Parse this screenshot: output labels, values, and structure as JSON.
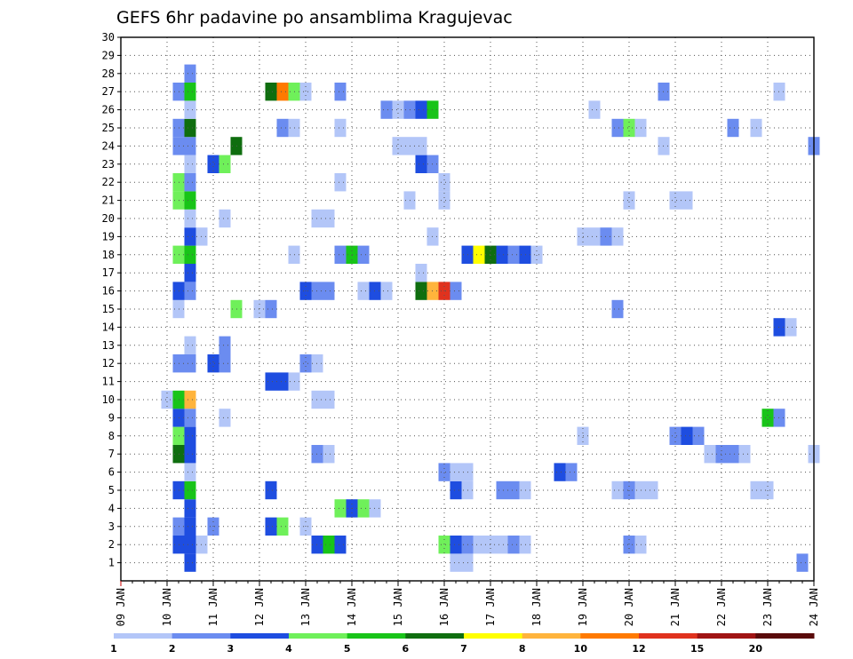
{
  "chart_data": {
    "type": "heatmap",
    "title": "GEFS 6hr padavine po ansamblima Kragujevac",
    "x_tick_labels": [
      "09 JAN",
      "10 JAN",
      "11 JAN",
      "12 JAN",
      "13 JAN",
      "14 JAN",
      "15 JAN",
      "16 JAN",
      "17 JAN",
      "18 JAN",
      "19 JAN",
      "20 JAN",
      "21 JAN",
      "22 JAN",
      "23 JAN",
      "24 JAN"
    ],
    "y_tick_labels": [
      "1",
      "2",
      "3",
      "4",
      "5",
      "6",
      "7",
      "8",
      "9",
      "10",
      "11",
      "12",
      "13",
      "14",
      "15",
      "16",
      "17",
      "18",
      "19",
      "20",
      "21",
      "22",
      "23",
      "24",
      "25",
      "26",
      "27",
      "28",
      "29",
      "30"
    ],
    "xlim_days": [
      9,
      24
    ],
    "ylim": [
      0,
      30
    ],
    "grid": true,
    "color_scale": {
      "colors": [
        "#b3c6f8",
        "#6b8cf0",
        "#1e4de0",
        "#6ff05a",
        "#18c418",
        "#0f6e0f",
        "#ffff00",
        "#ffb43c",
        "#ff7a00",
        "#e0321e",
        "#a01414",
        "#5a0a0a"
      ],
      "bound_labels": [
        "1",
        "2",
        "3",
        "4",
        "5",
        "6",
        "7",
        "8",
        "10",
        "12",
        "15",
        "20"
      ]
    },
    "cells": [
      [
        1,
        10.5,
        3
      ],
      [
        1,
        16.25,
        1
      ],
      [
        1,
        16.5,
        1
      ],
      [
        1,
        23.75,
        2
      ],
      [
        2,
        10.25,
        3
      ],
      [
        2,
        10.5,
        3
      ],
      [
        2,
        10.75,
        1
      ],
      [
        2,
        13.25,
        3
      ],
      [
        2,
        13.5,
        5
      ],
      [
        2,
        13.75,
        3
      ],
      [
        2,
        16.0,
        4
      ],
      [
        2,
        16.25,
        3
      ],
      [
        2,
        16.5,
        2
      ],
      [
        2,
        16.75,
        1
      ],
      [
        2,
        17.0,
        1
      ],
      [
        2,
        17.25,
        1
      ],
      [
        2,
        17.5,
        2
      ],
      [
        2,
        17.75,
        1
      ],
      [
        2,
        20.0,
        2
      ],
      [
        2,
        20.25,
        1
      ],
      [
        3,
        10.25,
        2
      ],
      [
        3,
        10.5,
        3
      ],
      [
        3,
        11.0,
        2
      ],
      [
        3,
        12.25,
        3
      ],
      [
        3,
        12.5,
        4
      ],
      [
        3,
        13.0,
        1
      ],
      [
        4,
        10.5,
        3
      ],
      [
        4,
        13.75,
        4
      ],
      [
        4,
        14.0,
        3
      ],
      [
        4,
        14.25,
        4
      ],
      [
        4,
        14.5,
        1
      ],
      [
        5,
        10.25,
        3
      ],
      [
        5,
        10.5,
        5
      ],
      [
        5,
        12.25,
        3
      ],
      [
        5,
        16.25,
        3
      ],
      [
        5,
        16.5,
        1
      ],
      [
        5,
        17.25,
        2
      ],
      [
        5,
        17.5,
        2
      ],
      [
        5,
        17.75,
        1
      ],
      [
        5,
        19.75,
        1
      ],
      [
        5,
        20.0,
        2
      ],
      [
        5,
        20.25,
        1
      ],
      [
        5,
        20.5,
        1
      ],
      [
        5,
        22.75,
        1
      ],
      [
        5,
        23.0,
        1
      ],
      [
        6,
        10.5,
        1
      ],
      [
        6,
        16.0,
        2
      ],
      [
        6,
        16.25,
        1
      ],
      [
        6,
        16.5,
        1
      ],
      [
        6,
        18.5,
        3
      ],
      [
        6,
        18.75,
        2
      ],
      [
        7,
        10.25,
        6
      ],
      [
        7,
        10.5,
        3
      ],
      [
        7,
        13.25,
        2
      ],
      [
        7,
        13.5,
        1
      ],
      [
        7,
        21.75,
        1
      ],
      [
        7,
        22.0,
        2
      ],
      [
        7,
        22.25,
        2
      ],
      [
        7,
        22.5,
        1
      ],
      [
        7,
        24.0,
        1
      ],
      [
        8,
        10.25,
        4
      ],
      [
        8,
        10.5,
        3
      ],
      [
        8,
        19.0,
        1
      ],
      [
        8,
        21.0,
        2
      ],
      [
        8,
        21.25,
        3
      ],
      [
        8,
        21.5,
        2
      ],
      [
        9,
        10.25,
        3
      ],
      [
        9,
        10.5,
        2
      ],
      [
        9,
        11.25,
        1
      ],
      [
        9,
        23.0,
        5
      ],
      [
        9,
        23.25,
        2
      ],
      [
        10,
        10.0,
        1
      ],
      [
        10,
        10.25,
        5
      ],
      [
        10,
        10.5,
        8
      ],
      [
        10,
        13.25,
        1
      ],
      [
        10,
        13.5,
        1
      ],
      [
        11,
        12.25,
        3
      ],
      [
        11,
        12.5,
        3
      ],
      [
        11,
        12.75,
        1
      ],
      [
        12,
        10.25,
        2
      ],
      [
        12,
        10.5,
        2
      ],
      [
        12,
        11.0,
        3
      ],
      [
        12,
        11.25,
        2
      ],
      [
        12,
        13.0,
        2
      ],
      [
        12,
        13.25,
        1
      ],
      [
        13,
        10.5,
        1
      ],
      [
        13,
        11.25,
        2
      ],
      [
        14,
        23.25,
        3
      ],
      [
        14,
        23.5,
        1
      ],
      [
        15,
        10.25,
        1
      ],
      [
        15,
        11.5,
        4
      ],
      [
        15,
        12.0,
        1
      ],
      [
        15,
        12.25,
        2
      ],
      [
        15,
        19.75,
        2
      ],
      [
        16,
        10.25,
        3
      ],
      [
        16,
        10.5,
        2
      ],
      [
        16,
        13.0,
        3
      ],
      [
        16,
        13.25,
        2
      ],
      [
        16,
        13.5,
        2
      ],
      [
        16,
        14.25,
        1
      ],
      [
        16,
        14.5,
        3
      ],
      [
        16,
        14.75,
        1
      ],
      [
        16,
        15.5,
        6
      ],
      [
        16,
        15.75,
        8
      ],
      [
        16,
        16.0,
        10
      ],
      [
        16,
        16.25,
        2
      ],
      [
        17,
        10.5,
        3
      ],
      [
        17,
        15.5,
        1
      ],
      [
        18,
        10.25,
        4
      ],
      [
        18,
        10.5,
        5
      ],
      [
        18,
        12.75,
        1
      ],
      [
        18,
        13.75,
        2
      ],
      [
        18,
        14.0,
        5
      ],
      [
        18,
        14.25,
        2
      ],
      [
        18,
        16.5,
        3
      ],
      [
        18,
        16.75,
        7
      ],
      [
        18,
        17.0,
        6
      ],
      [
        18,
        17.25,
        3
      ],
      [
        18,
        17.5,
        2
      ],
      [
        18,
        17.75,
        3
      ],
      [
        18,
        18.0,
        1
      ],
      [
        19,
        10.5,
        3
      ],
      [
        19,
        10.75,
        1
      ],
      [
        19,
        15.75,
        1
      ],
      [
        19,
        19.0,
        1
      ],
      [
        19,
        19.25,
        1
      ],
      [
        19,
        19.5,
        2
      ],
      [
        19,
        19.75,
        1
      ],
      [
        20,
        10.5,
        1
      ],
      [
        20,
        11.25,
        1
      ],
      [
        20,
        13.25,
        1
      ],
      [
        20,
        13.5,
        1
      ],
      [
        21,
        10.25,
        4
      ],
      [
        21,
        10.5,
        5
      ],
      [
        21,
        15.25,
        1
      ],
      [
        21,
        16.0,
        1
      ],
      [
        21,
        20.0,
        1
      ],
      [
        21,
        21.0,
        1
      ],
      [
        21,
        21.25,
        1
      ],
      [
        22,
        10.25,
        4
      ],
      [
        22,
        10.5,
        2
      ],
      [
        22,
        13.75,
        1
      ],
      [
        22,
        16.0,
        1
      ],
      [
        23,
        10.5,
        1
      ],
      [
        23,
        11.0,
        3
      ],
      [
        23,
        11.25,
        4
      ],
      [
        23,
        15.5,
        3
      ],
      [
        23,
        15.75,
        2
      ],
      [
        24,
        10.25,
        2
      ],
      [
        24,
        10.5,
        2
      ],
      [
        24,
        11.5,
        6
      ],
      [
        24,
        15.0,
        1
      ],
      [
        24,
        15.25,
        1
      ],
      [
        24,
        15.5,
        1
      ],
      [
        24,
        20.75,
        1
      ],
      [
        24,
        24.0,
        2
      ],
      [
        25,
        10.25,
        2
      ],
      [
        25,
        10.5,
        6
      ],
      [
        25,
        12.5,
        2
      ],
      [
        25,
        12.75,
        1
      ],
      [
        25,
        13.75,
        1
      ],
      [
        25,
        19.75,
        2
      ],
      [
        25,
        20.0,
        4
      ],
      [
        25,
        20.25,
        1
      ],
      [
        25,
        22.25,
        2
      ],
      [
        25,
        22.75,
        1
      ],
      [
        26,
        10.5,
        1
      ],
      [
        26,
        14.75,
        2
      ],
      [
        26,
        15.0,
        1
      ],
      [
        26,
        15.25,
        2
      ],
      [
        26,
        15.5,
        3
      ],
      [
        26,
        15.75,
        5
      ],
      [
        26,
        19.25,
        1
      ],
      [
        27,
        10.25,
        2
      ],
      [
        27,
        10.5,
        5
      ],
      [
        27,
        12.25,
        6
      ],
      [
        27,
        12.5,
        9
      ],
      [
        27,
        12.75,
        4
      ],
      [
        27,
        13.0,
        1
      ],
      [
        27,
        13.75,
        2
      ],
      [
        27,
        20.75,
        2
      ],
      [
        27,
        23.25,
        1
      ],
      [
        28,
        10.5,
        2
      ]
    ]
  }
}
